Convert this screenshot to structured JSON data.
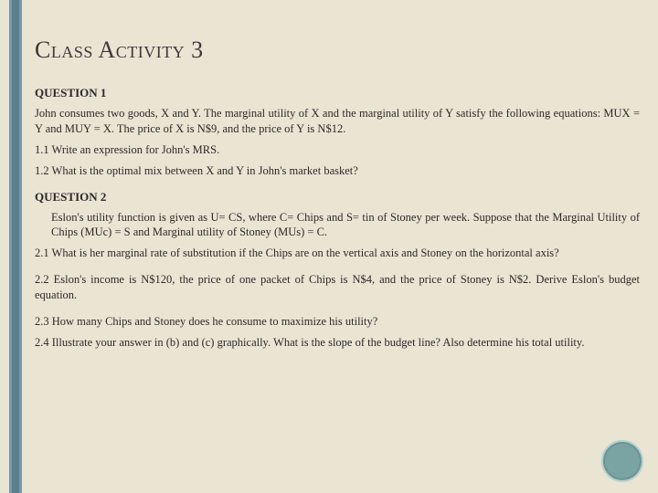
{
  "colors": {
    "page_bg": "#eae4d3",
    "stripe_outer": "#7a99a8",
    "stripe_inner": "#5a8090",
    "text": "#2a2a2a",
    "title": "#3a3a3a",
    "circle_fill": "#7aa3a3",
    "circle_border": "#b9cfcf"
  },
  "typography": {
    "title_fontsize": 26,
    "heading_fontsize": 13,
    "body_fontsize": 12.5,
    "font_family": "Georgia"
  },
  "title": "Class Activity 3",
  "q1": {
    "heading": "QUESTION 1",
    "intro": "John consumes two goods, X and Y. The marginal utility of X and the marginal utility of Y satisfy the following equations: MUX = Y and MUY = X. The price of X is N$9, and the price of Y is N$12.",
    "p1": "1.1 Write an expression for John's MRS.",
    "p2": "1.2 What is the optimal mix between X and Y in John's market basket?"
  },
  "q2": {
    "heading": "QUESTION 2",
    "intro": "Eslon's utility function is given as U= CS, where C= Chips and S=  tin of Stoney per week. Suppose that the Marginal Utility of Chips (MUc) = S and Marginal utility of Stoney (MUs) = C.",
    "p1": "2.1 What is her marginal rate of substitution if the Chips are on the vertical axis and Stoney on the horizontal axis?",
    "p2": "2.2 Eslon's income is N$120, the price of one packet of Chips is N$4, and the price of Stoney is N$2. Derive Eslon's budget equation.",
    "p3": "2.3 How many Chips and Stoney does he consume to maximize his utility?",
    "p4": "2.4 Illustrate your answer in (b) and (c) graphically. What is the slope of the budget line? Also determine his total utility."
  }
}
